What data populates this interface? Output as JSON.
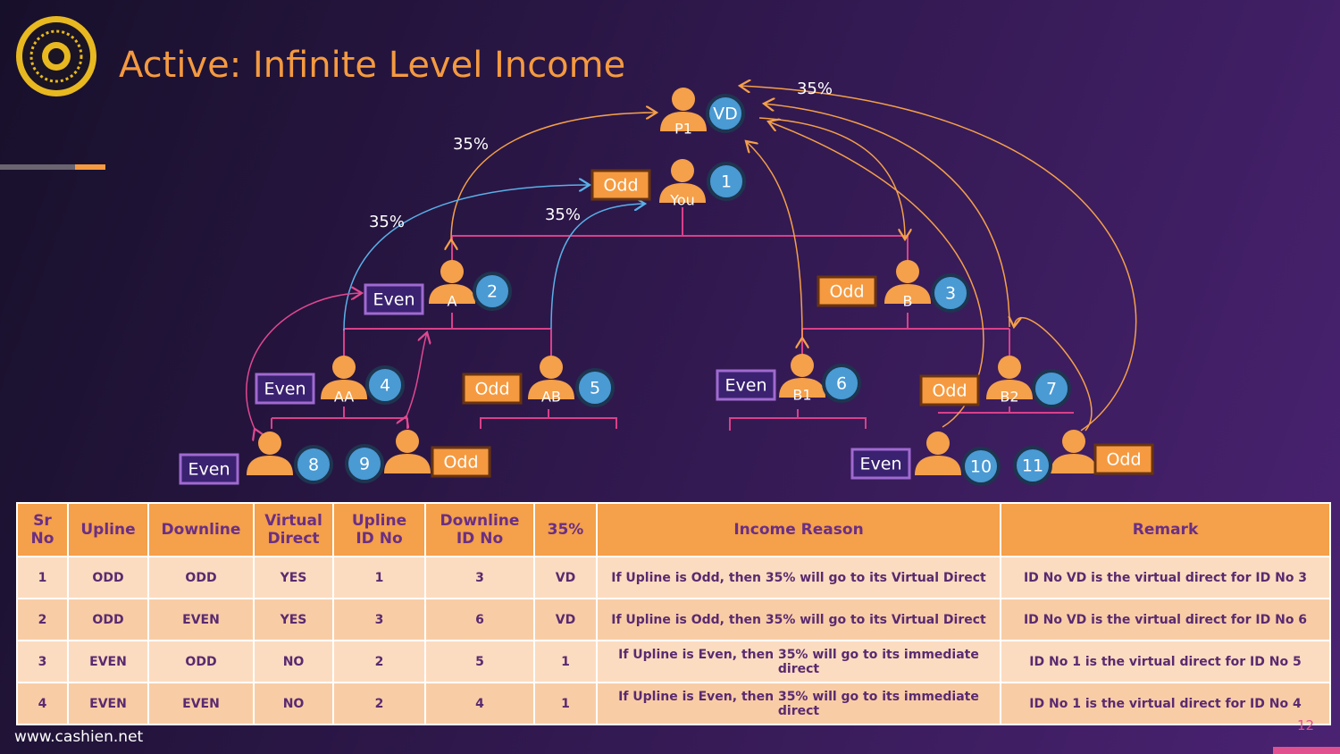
{
  "header": {
    "title": "Active: Infinite Level Income"
  },
  "diagram": {
    "percent_labels": [
      "35%",
      "35%",
      "35%",
      "35%"
    ],
    "nodes": [
      {
        "label": "P1",
        "badge": "VD"
      },
      {
        "label": "You",
        "badge": "1",
        "tag": "Odd"
      },
      {
        "label": "A",
        "badge": "2",
        "tag": "Even"
      },
      {
        "label": "B",
        "badge": "3",
        "tag": "Odd"
      },
      {
        "label": "AA",
        "badge": "4",
        "tag": "Even"
      },
      {
        "label": "AB",
        "badge": "5",
        "tag": "Odd"
      },
      {
        "label": "B1",
        "badge": "6",
        "tag": "Even"
      },
      {
        "label": "B2",
        "badge": "7",
        "tag": "Odd"
      },
      {
        "badge": "8",
        "tag": "Even"
      },
      {
        "badge": "9",
        "tag": "Odd"
      },
      {
        "badge": "10",
        "tag": "Even"
      },
      {
        "badge": "11",
        "tag": "Odd"
      }
    ]
  },
  "table": {
    "columns": [
      "Sr No",
      "Upline",
      "Downline",
      "Virtual Direct",
      "Upline ID No",
      "Downline ID No",
      "35%",
      "Income Reason",
      "Remark"
    ],
    "rows": [
      [
        "1",
        "ODD",
        "ODD",
        "YES",
        "1",
        "3",
        "VD",
        "If Upline is Odd, then 35% will go to its Virtual Direct",
        "ID No VD is the virtual direct for ID No 3"
      ],
      [
        "2",
        "ODD",
        "EVEN",
        "YES",
        "3",
        "6",
        "VD",
        "If Upline is Odd, then 35% will go to its Virtual Direct",
        "ID No VD is the virtual direct for ID No 6"
      ],
      [
        "3",
        "EVEN",
        "ODD",
        "NO",
        "2",
        "5",
        "1",
        "If Upline is Even, then 35% will go to its immediate direct",
        "ID No 1 is the virtual direct for ID No 5"
      ],
      [
        "4",
        "EVEN",
        "EVEN",
        "NO",
        "2",
        "4",
        "1",
        "If Upline is Even, then 35% will go to its immediate direct",
        "ID No 1 is the virtual direct for ID No 4"
      ]
    ]
  },
  "footer": {
    "url": "www.cashien.net",
    "page": "12"
  }
}
